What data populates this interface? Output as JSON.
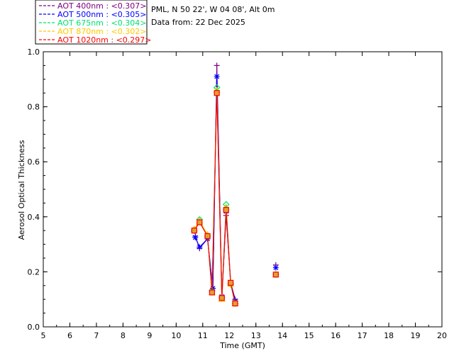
{
  "header": {
    "station": "PML, N 50 22', W 04 08', Alt 0m",
    "date_line": "Data from: 22 Dec 2025"
  },
  "chart_data": {
    "type": "line",
    "xlabel": "Time (GMT)",
    "ylabel": "Aerosol Optical Thickness",
    "xlim": [
      5,
      20
    ],
    "ylim": [
      0,
      1.0
    ],
    "x_ticks": [
      "5",
      "6",
      "7",
      "8",
      "9",
      "10",
      "11",
      "12",
      "13",
      "14",
      "15",
      "16",
      "17",
      "18",
      "19",
      "20"
    ],
    "y_ticks": [
      "0.0",
      "0.2",
      "0.4",
      "0.6",
      "0.8",
      "1.0"
    ],
    "legend_position": "top-left",
    "series": [
      {
        "name": "AOT  400nm : <0.307>",
        "color": "#800080",
        "marker": "plus",
        "x": [
          10.72,
          10.88,
          11.18,
          11.38,
          11.53,
          11.72,
          11.88,
          12.05,
          12.22,
          13.75
        ],
        "y": [
          0.33,
          0.285,
          0.32,
          0.14,
          0.95,
          0.11,
          0.405,
          0.16,
          0.1,
          0.225
        ]
      },
      {
        "name": "AOT  500nm : <0.305>",
        "color": "#0000ff",
        "marker": "star",
        "x": [
          10.72,
          10.88,
          11.18,
          11.38,
          11.53,
          11.72,
          11.88,
          12.05,
          12.22,
          13.75
        ],
        "y": [
          0.325,
          0.29,
          0.32,
          0.14,
          0.91,
          0.11,
          0.42,
          0.16,
          0.095,
          0.215
        ]
      },
      {
        "name": "AOT  675nm : <0.304>",
        "color": "#00e070",
        "marker": "diamond",
        "x": [
          10.68,
          10.88,
          11.18,
          11.35,
          11.53,
          11.72,
          11.88,
          12.05,
          12.22,
          13.75
        ],
        "y": [
          0.35,
          0.39,
          0.33,
          0.13,
          0.87,
          0.105,
          0.445,
          0.155,
          0.085,
          0.19
        ]
      },
      {
        "name": "AOT  870nm : <0.302>",
        "color": "#ffc800",
        "marker": "triangle",
        "x": [
          10.68,
          10.88,
          11.18,
          11.35,
          11.53,
          11.72,
          11.88,
          12.05,
          12.22,
          13.75
        ],
        "y": [
          0.355,
          0.385,
          0.335,
          0.125,
          0.86,
          0.1,
          0.435,
          0.155,
          0.085,
          0.19
        ]
      },
      {
        "name": "AOT 1020nm : <0.297>",
        "color": "#ff0000",
        "marker": "square",
        "x": [
          10.68,
          10.88,
          11.18,
          11.35,
          11.53,
          11.72,
          11.88,
          12.05,
          12.22,
          13.75
        ],
        "y": [
          0.35,
          0.38,
          0.33,
          0.125,
          0.85,
          0.105,
          0.425,
          0.16,
          0.085,
          0.19
        ]
      }
    ]
  }
}
